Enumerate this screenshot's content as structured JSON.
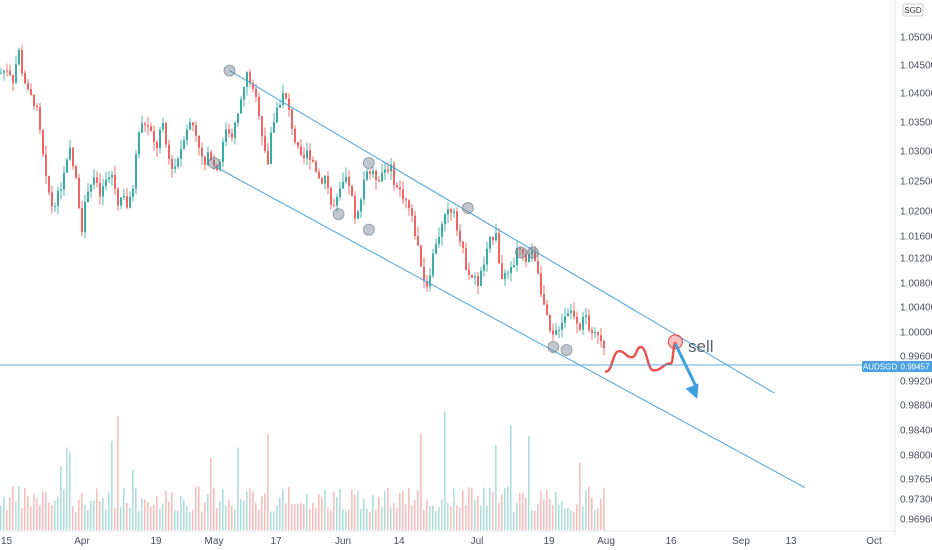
{
  "chart_data": {
    "type": "candlestick",
    "symbol": "AUDSGD",
    "currency": "SGD",
    "last_price": "0.99457",
    "y_ticks": [
      "1.05000",
      "1.04500",
      "1.04000",
      "1.03500",
      "1.03000",
      "1.02500",
      "1.02000",
      "1.01600",
      "1.01200",
      "1.00800",
      "1.00400",
      "1.00000",
      "0.99600",
      "0.99200",
      "0.98800",
      "0.98400",
      "0.98000",
      "0.97650",
      "0.97300",
      "0.96960"
    ],
    "x_ticks": [
      "15",
      "Apr",
      "19",
      "May",
      "17",
      "Jun",
      "14",
      "Jul",
      "19",
      "Aug",
      "16",
      "Sep",
      "13",
      "Oct"
    ],
    "annotation": "sell",
    "channel": {
      "upper": [
        [
          "May 5",
          1.044
        ],
        [
          "Sep 9",
          0.99
        ]
      ],
      "lower": [
        [
          "May 1",
          1.0275
        ],
        [
          "Sep 16",
          0.975
        ]
      ]
    },
    "touch_points": [
      [
        "May 5",
        1.044
      ],
      [
        "May 1",
        1.028
      ],
      [
        "May 31",
        1.0195
      ],
      [
        "Jun 7",
        1.017
      ],
      [
        "Jun 7",
        1.028
      ],
      [
        "Jun 29",
        1.0205
      ],
      [
        "Jul 12",
        1.013
      ],
      [
        "Jul 15",
        1.013
      ],
      [
        "Jul 20",
        0.9975
      ],
      [
        "Jul 23",
        0.997
      ]
    ],
    "projection": {
      "color": "#e8524f",
      "points": [
        [
          "Aug 1",
          0.9935
        ],
        [
          "Aug 4",
          0.9968
        ],
        [
          "Aug 7",
          0.9958
        ],
        [
          "Aug 9",
          0.9975
        ],
        [
          "Aug 12",
          0.9937
        ],
        [
          "Aug 16",
          0.9948
        ],
        [
          "Aug 17",
          0.9982
        ]
      ]
    },
    "sell_arrow": [
      [
        "Aug 17",
        0.998
      ],
      [
        "Aug 22",
        0.989
      ]
    ],
    "colors": {
      "up": "#26a69a",
      "down": "#ef5350",
      "channel": "#4aa3e0",
      "price_line": "#4aa3e0",
      "arrow": "#3e9fe0"
    }
  }
}
